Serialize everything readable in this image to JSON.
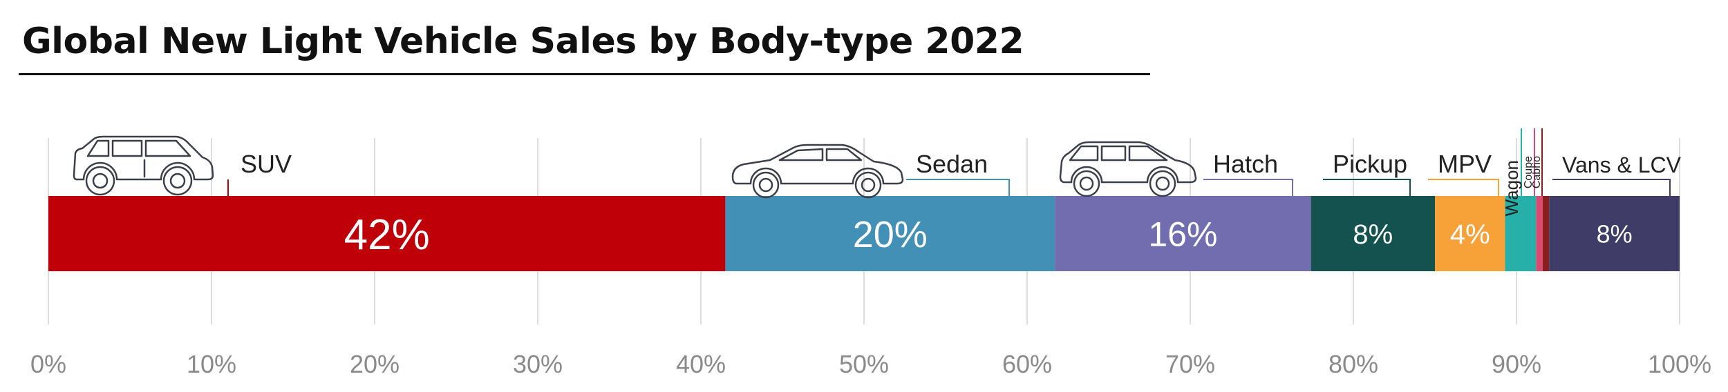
{
  "chart_data": {
    "type": "bar",
    "orientation": "horizontal-stacked",
    "title": "Global New Light Vehicle Sales by Body-type 2022",
    "xlim": [
      0,
      100
    ],
    "x_ticks": [
      "0%",
      "10%",
      "20%",
      "30%",
      "40%",
      "50%",
      "60%",
      "70%",
      "80%",
      "90%",
      "100%"
    ],
    "grid": true,
    "categories": [
      "SUV",
      "Sedan",
      "Hatch",
      "Pickup",
      "MPV",
      "Wagon",
      "Coupe",
      "Cabrio",
      "Vans & LCV"
    ],
    "values": [
      41.5,
      20.2,
      15.7,
      7.6,
      4.3,
      1.9,
      0.4,
      0.4,
      8.0
    ],
    "data_labels": [
      "42%",
      "20%",
      "16%",
      "8%",
      "4%",
      "",
      "",
      "",
      "8%"
    ],
    "colors": [
      "#c00008",
      "#4390b7",
      "#716dae",
      "#13524f",
      "#f7a139",
      "#26b0a9",
      "#d94b72",
      "#8a1e1e",
      "#3f3c68"
    ]
  },
  "icons": [
    "suv-car-icon",
    "sedan-car-icon",
    "hatchback-car-icon"
  ]
}
